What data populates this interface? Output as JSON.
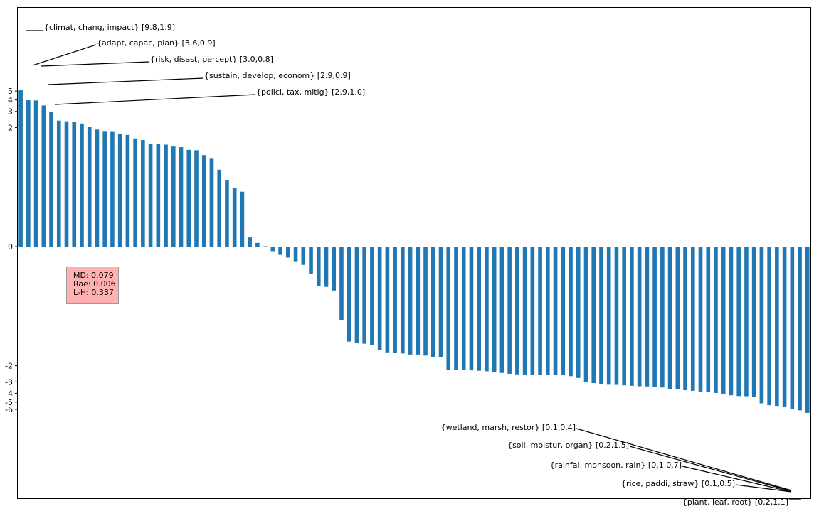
{
  "colors": {
    "bar": "#1f77b4",
    "stats_box_bg": "#ffb0b0",
    "stats_box_border": "#999999"
  },
  "stats": {
    "md": "MD: 0.079",
    "rae": "Rae: 0.006",
    "lh": "L-H: 0.337"
  },
  "chart_data": {
    "type": "bar",
    "title": "",
    "xlabel": "",
    "ylabel": "",
    "scale": "symlog",
    "grid": false,
    "yticks": [
      {
        "value": 5,
        "label": "5"
      },
      {
        "value": 4,
        "label": "4"
      },
      {
        "value": 3,
        "label": "3"
      },
      {
        "value": 2,
        "label": "2"
      },
      {
        "value": 0,
        "label": "0"
      },
      {
        "value": -2,
        "label": "-2"
      },
      {
        "value": -3,
        "label": "-3"
      },
      {
        "value": -4,
        "label": "-4"
      },
      {
        "value": -5,
        "label": "-5"
      },
      {
        "value": -6,
        "label": "-6"
      }
    ],
    "values": [
      5.12,
      3.97,
      3.95,
      3.48,
      2.96,
      2.38,
      2.34,
      2.3,
      2.21,
      2.04,
      1.9,
      1.8,
      1.79,
      1.69,
      1.66,
      1.52,
      1.46,
      1.33,
      1.32,
      1.3,
      1.24,
      1.22,
      1.14,
      1.13,
      1.0,
      0.96,
      0.84,
      0.73,
      0.64,
      0.6,
      0.1,
      0.04,
      0.0,
      -0.05,
      -0.09,
      -0.12,
      -0.16,
      -0.2,
      -0.3,
      -0.43,
      -0.44,
      -0.48,
      -0.8,
      -1.09,
      -1.12,
      -1.15,
      -1.2,
      -1.34,
      -1.43,
      -1.44,
      -1.47,
      -1.51,
      -1.51,
      -1.55,
      -1.6,
      -1.62,
      -2.22,
      -2.23,
      -2.24,
      -2.25,
      -2.27,
      -2.3,
      -2.34,
      -2.4,
      -2.45,
      -2.49,
      -2.5,
      -2.51,
      -2.52,
      -2.52,
      -2.53,
      -2.54,
      -2.6,
      -2.72,
      -3.0,
      -3.1,
      -3.17,
      -3.23,
      -3.24,
      -3.28,
      -3.32,
      -3.36,
      -3.37,
      -3.4,
      -3.46,
      -3.57,
      -3.63,
      -3.7,
      -3.76,
      -3.83,
      -3.88,
      -3.97,
      -4.04,
      -4.21,
      -4.29,
      -4.31,
      -4.41,
      -5.15,
      -5.4,
      -5.5,
      -5.6,
      -6.0,
      -6.15,
      -6.55
    ],
    "annotations": [
      {
        "bar_index": 0,
        "label": "{climat, chang, impact} [9.8,1.9]"
      },
      {
        "bar_index": 1,
        "label": "{adapt, capac, plan} [3.6,0.9]"
      },
      {
        "bar_index": 2,
        "label": "{risk, disast, percept} [3.0,0.8]"
      },
      {
        "bar_index": 3,
        "label": "{sustain, develop, econom} [2.9,0.9]"
      },
      {
        "bar_index": 4,
        "label": "{polici, tax, mitig} [2.9,1.0]"
      },
      {
        "bar_index": 103,
        "label": "{wetland, marsh, restor} [0.1,0.4]"
      },
      {
        "bar_index": 103,
        "label": "{soil, moistur, organ} [0.2,1.5]"
      },
      {
        "bar_index": 103,
        "label": "{rainfal, monsoon, rain} [0.1,0.7]"
      },
      {
        "bar_index": 103,
        "label": "{rice, paddi, straw} [0.1,0.5]"
      },
      {
        "bar_index": 103,
        "label": "{plant, leaf, root} [0.2,1.1]"
      }
    ]
  }
}
